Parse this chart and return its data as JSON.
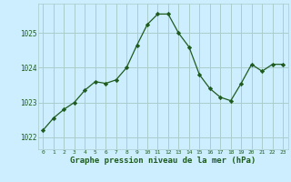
{
  "x": [
    0,
    1,
    2,
    3,
    4,
    5,
    6,
    7,
    8,
    9,
    10,
    11,
    12,
    13,
    14,
    15,
    16,
    17,
    18,
    19,
    20,
    21,
    22,
    23
  ],
  "y": [
    1022.2,
    1022.55,
    1022.8,
    1023.0,
    1023.35,
    1023.6,
    1023.55,
    1023.65,
    1024.0,
    1024.65,
    1025.25,
    1025.55,
    1025.55,
    1025.0,
    1024.6,
    1023.8,
    1023.4,
    1023.15,
    1023.05,
    1023.55,
    1024.1,
    1023.9,
    1024.1,
    1024.1
  ],
  "line_color": "#1e5c1e",
  "marker": "D",
  "marker_size": 2.2,
  "background_color": "#cceeff",
  "grid_color": "#aacccc",
  "xlabel": "Graphe pression niveau de la mer (hPa)",
  "xlabel_color": "#1e5c1e",
  "ytick_values": [
    1022,
    1023,
    1024,
    1025
  ],
  "ytick_labels": [
    "1022",
    "1023",
    "1024",
    "1025"
  ],
  "xtick_labels": [
    "0",
    "1",
    "2",
    "3",
    "4",
    "5",
    "6",
    "7",
    "8",
    "9",
    "10",
    "11",
    "12",
    "13",
    "14",
    "15",
    "16",
    "17",
    "18",
    "19",
    "20",
    "21",
    "22",
    "23"
  ],
  "ylim": [
    1021.65,
    1025.85
  ],
  "xlim": [
    -0.5,
    23.5
  ]
}
